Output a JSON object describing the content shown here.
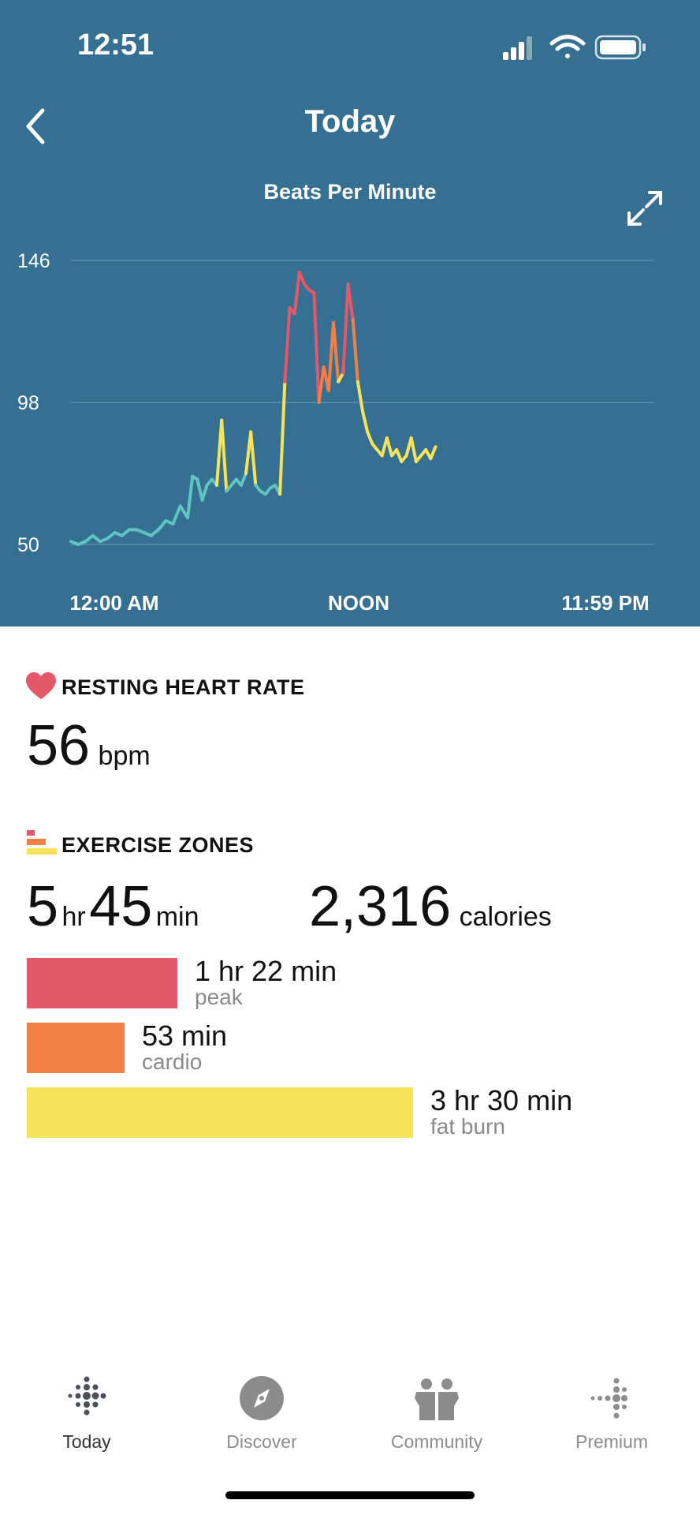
{
  "status_bar": {
    "time": "12:51"
  },
  "nav": {
    "title": "Today"
  },
  "chart_data": {
    "type": "line",
    "title": "Beats Per Minute",
    "ylim": [
      50,
      146
    ],
    "y_ticks": [
      "146",
      "98",
      "50"
    ],
    "x_tick_labels": [
      "12:00 AM",
      "NOON",
      "11:59 PM"
    ],
    "x_range_hours": [
      0,
      24
    ],
    "grid": true,
    "zone_colors": {
      "resting": "#5fc5c2",
      "fat_burn": "#f7e35a",
      "cardio": "#f08043",
      "peak": "#e5586a"
    },
    "series": [
      {
        "x": [
          0,
          0.3,
          0.6,
          0.9,
          1.2,
          1.5,
          1.8,
          2.1,
          2.4,
          2.7,
          3.0,
          3.3,
          3.6,
          3.9,
          4.2,
          4.5,
          4.8,
          5.0,
          5.2,
          5.4,
          5.6,
          5.8,
          6.0,
          6.2,
          6.4,
          6.6,
          6.8,
          7.0,
          7.2,
          7.4,
          7.6,
          7.8,
          8.0,
          8.2,
          8.4,
          8.6,
          8.8,
          9.0,
          9.2,
          9.4,
          9.6,
          9.8,
          10.0,
          10.2,
          10.4,
          10.6,
          10.8,
          11.0,
          11.2,
          11.4,
          11.6,
          11.8,
          12.0,
          12.2,
          12.4,
          12.6,
          12.8,
          13.0,
          13.2,
          13.4,
          13.6,
          13.8,
          14.0,
          14.2,
          14.4,
          14.6,
          14.8,
          15.0
        ],
        "y": [
          51,
          50,
          51,
          53,
          51,
          52,
          54,
          53,
          55,
          55,
          54,
          53,
          55,
          58,
          57,
          63,
          59,
          73,
          72,
          65,
          70,
          72,
          70,
          92,
          68,
          70,
          72,
          70,
          74,
          88,
          70,
          68,
          67,
          69,
          70,
          67,
          105,
          130,
          128,
          142,
          138,
          136,
          135,
          98,
          110,
          102,
          125,
          105,
          108,
          138,
          126,
          105,
          95,
          88,
          84,
          82,
          80,
          86,
          80,
          82,
          78,
          80,
          86,
          78,
          80,
          82,
          79,
          83
        ]
      }
    ]
  },
  "resting": {
    "title": "RESTING HEART RATE",
    "value": "56",
    "unit": "bpm",
    "heart_color": "#e5586a"
  },
  "exercise": {
    "title": "EXERCISE ZONES",
    "hours": "5",
    "hours_unit": "hr",
    "minutes": "45",
    "minutes_unit": "min",
    "calories": "2,316",
    "calories_unit": "calories",
    "zones": [
      {
        "time": "1 hr 22 min",
        "label": "peak",
        "minutes": 82,
        "color": "#e5586a"
      },
      {
        "time": "53 min",
        "label": "cardio",
        "minutes": 53,
        "color": "#f08043"
      },
      {
        "time": "3 hr 30 min",
        "label": "fat burn",
        "minutes": 210,
        "color": "#f7e35a"
      }
    ]
  },
  "tabs": [
    {
      "label": "Today",
      "icon": "fitbit-dots-icon",
      "active": true
    },
    {
      "label": "Discover",
      "icon": "compass-icon",
      "active": false
    },
    {
      "label": "Community",
      "icon": "community-icon",
      "active": false
    },
    {
      "label": "Premium",
      "icon": "premium-dots-icon",
      "active": false
    }
  ]
}
